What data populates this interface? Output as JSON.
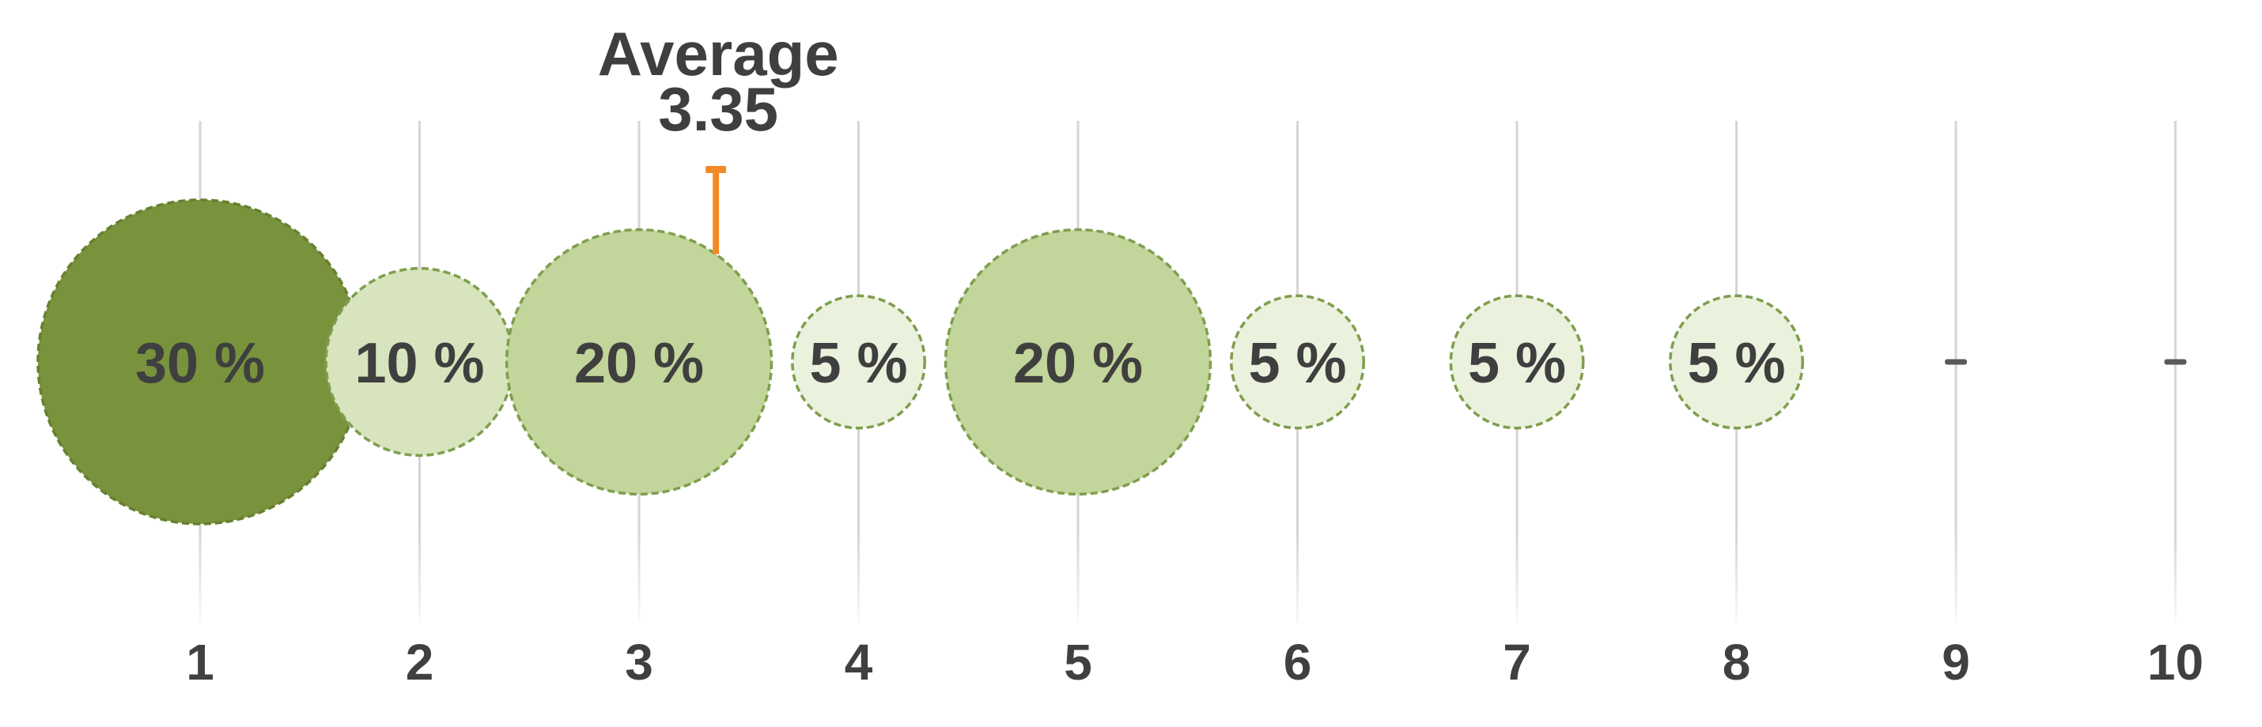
{
  "chart_data": {
    "type": "bubble",
    "title": "",
    "xlabel": "",
    "ylabel": "",
    "x_range": [
      1,
      10
    ],
    "grid": "vertical-gridlines",
    "legend": false,
    "size_encoding": "bubble area proportional to percent",
    "categories": [
      "1",
      "2",
      "3",
      "4",
      "5",
      "6",
      "7",
      "8",
      "9",
      "10"
    ],
    "values": [
      30,
      10,
      20,
      5,
      20,
      5,
      5,
      5,
      0,
      0
    ],
    "value_labels": [
      "30 %",
      "10 %",
      "20 %",
      "5 %",
      "20 %",
      "5 %",
      "5 %",
      "5 %",
      "",
      ""
    ],
    "average": {
      "label": "Average",
      "value": 3.35,
      "value_label": "3.35"
    }
  },
  "colors": {
    "background": "#ffffff",
    "gridline": "#d5d5d5",
    "zero_dash": "#595959",
    "label_text": "#3f3f3f",
    "axis_text": "#404040",
    "average_text": "#3f3f3f",
    "average_marker": "#f28a28",
    "fill_by_value": {
      "30": "#78933c",
      "20": "#c2d59a",
      "10": "#d7e4bd",
      "5": "#eaf1dd"
    },
    "stroke_by_value": {
      "30": "#66802e",
      "20": "#7e9e4d",
      "10": "#7e9e4d",
      "5": "#7e9e4d"
    }
  }
}
